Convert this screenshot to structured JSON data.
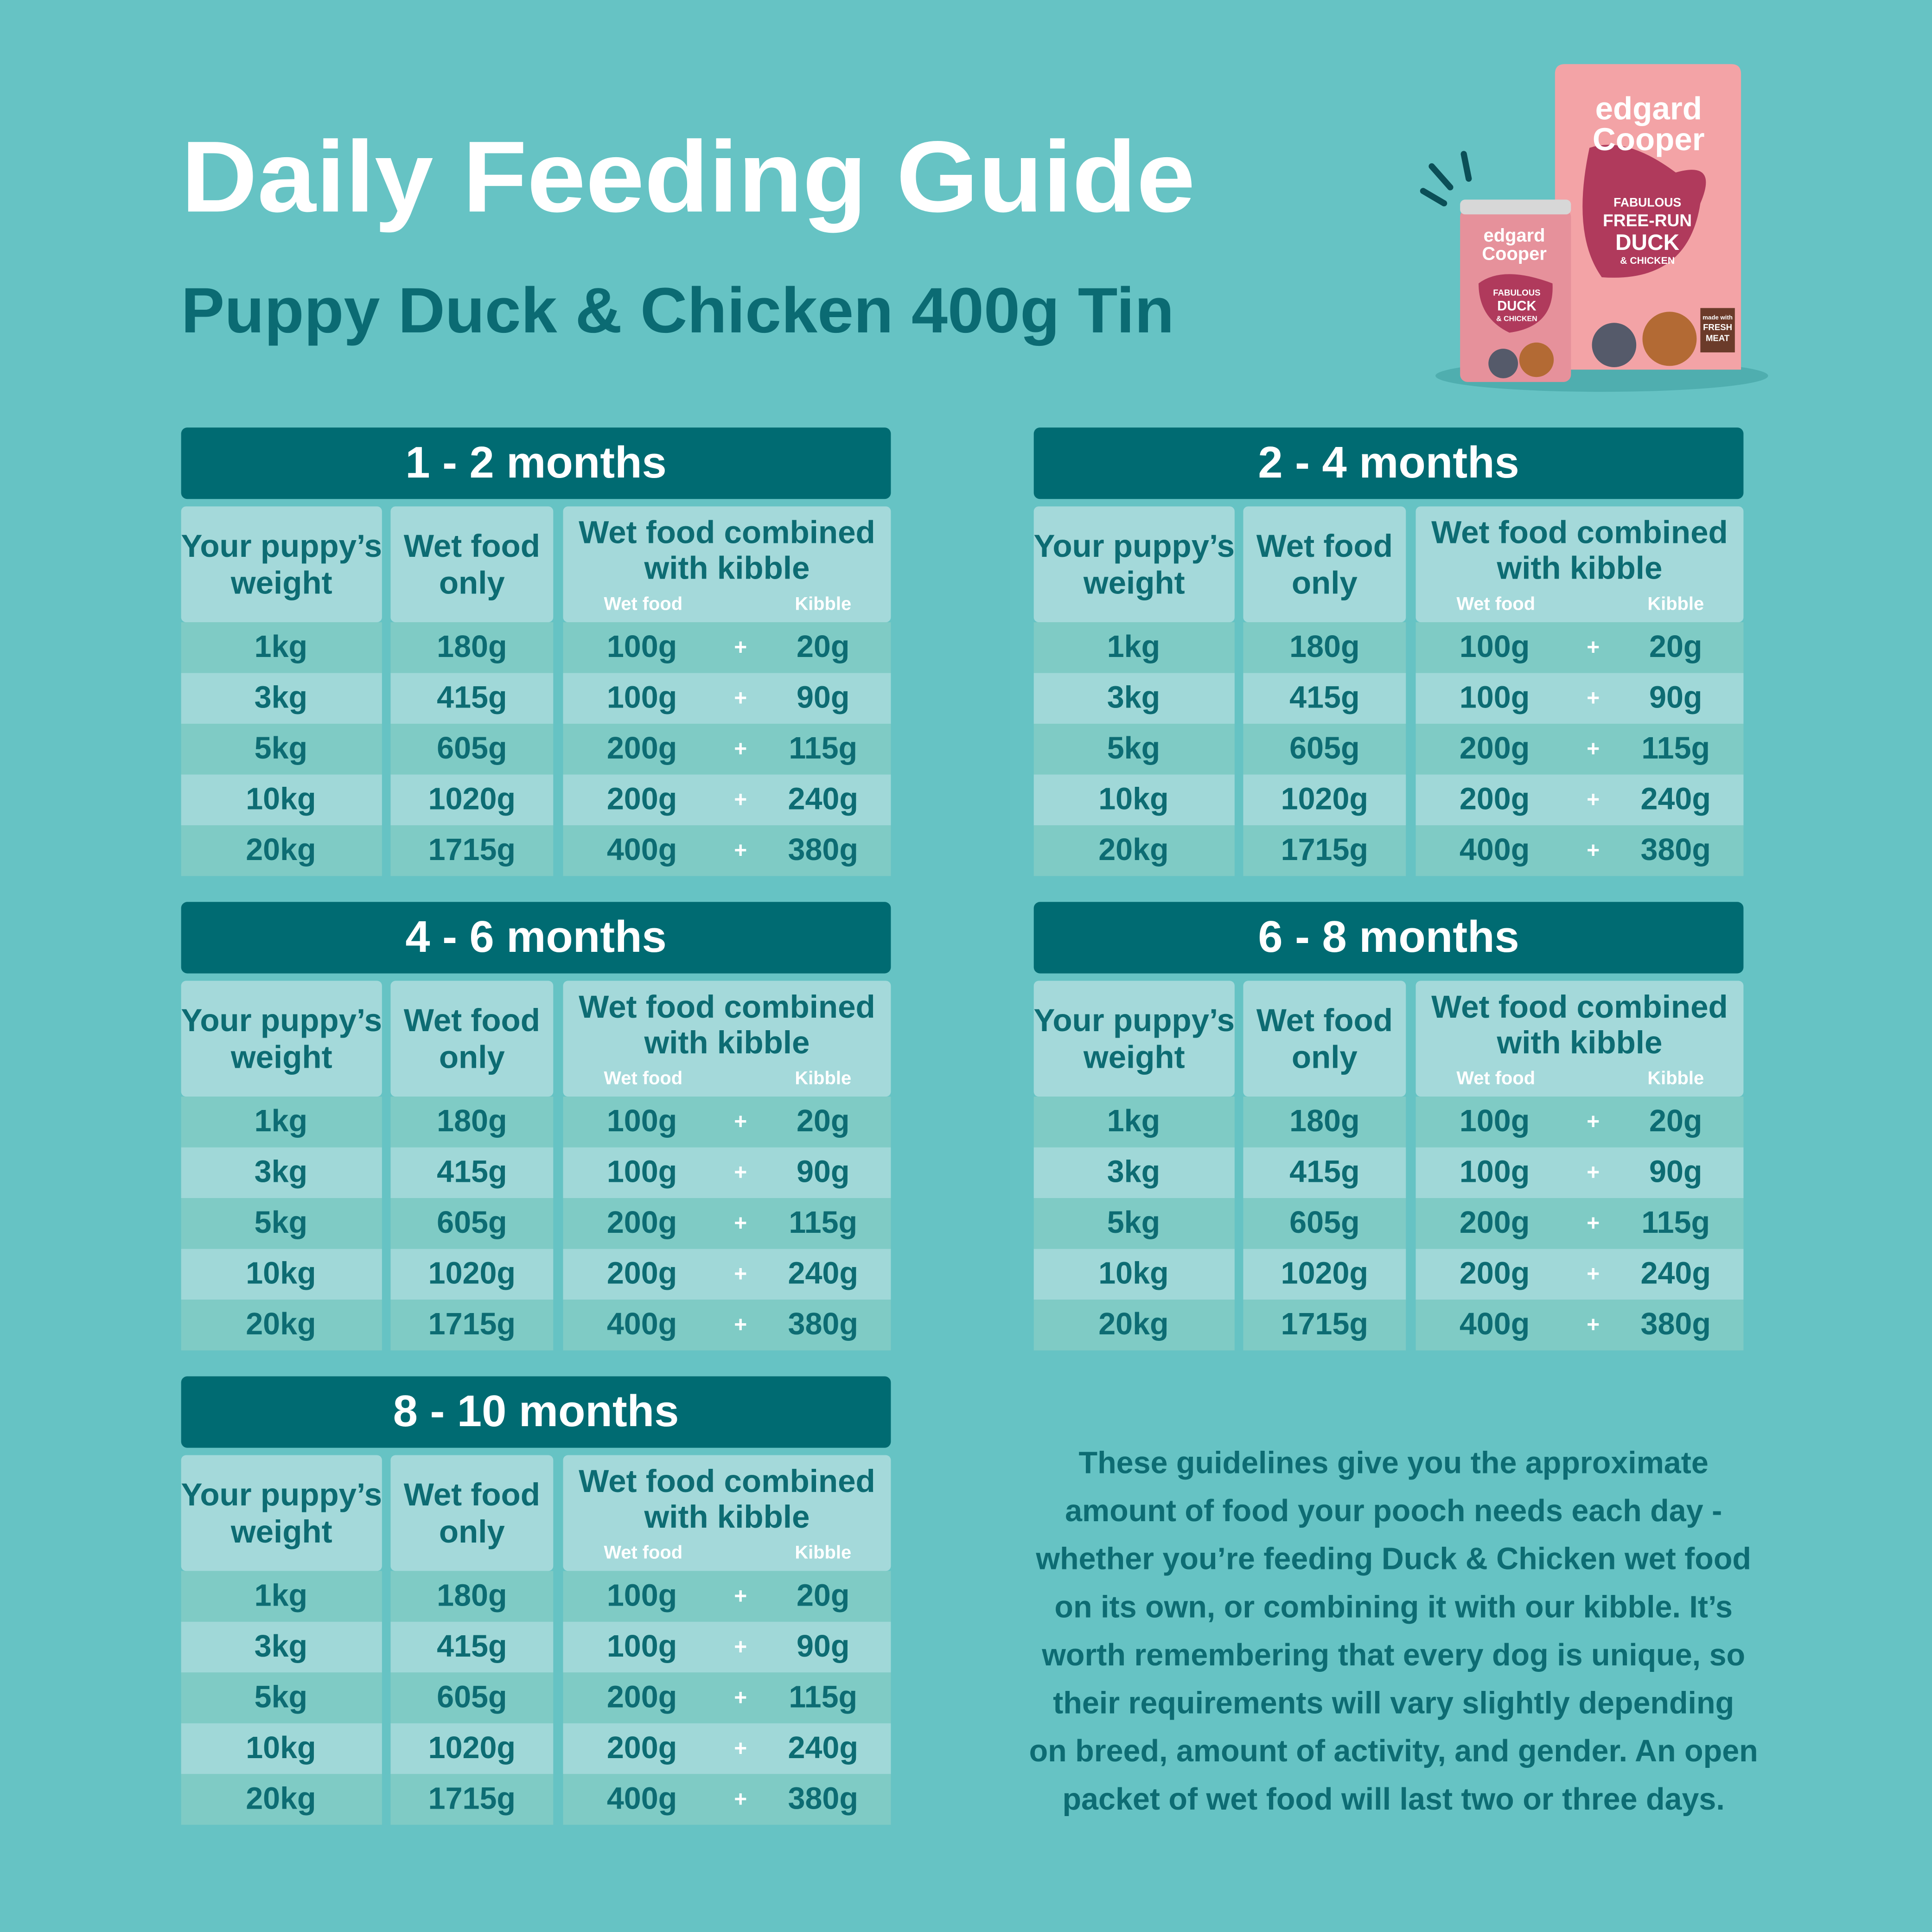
{
  "header": {
    "title": "Daily Feeding Guide",
    "subtitle": "Puppy Duck & Chicken 400g Tin"
  },
  "product": {
    "bag": {
      "brand": [
        "edgard",
        "Cooper"
      ],
      "lines": [
        "FABULOUS",
        "FREE-RUN",
        "DUCK",
        "& CHICKEN"
      ],
      "badge": [
        "made with",
        "FRESH",
        "MEAT"
      ]
    },
    "tin": {
      "brand": [
        "edgard",
        "Cooper"
      ],
      "lines": [
        "FABULOUS",
        "DUCK",
        "& CHICKEN"
      ]
    }
  },
  "tables": [
    {
      "title": "1 - 2 months",
      "headers": {
        "weight": [
          "Your puppy’s",
          "weight"
        ],
        "wet_only": [
          "Wet food",
          "only"
        ],
        "combined": [
          "Wet food combined",
          "with kibble"
        ],
        "wet_food": "Wet food",
        "kibble": "Kibble"
      },
      "separator": "+",
      "rows": [
        [
          "1kg",
          "180g",
          "100g",
          "20g"
        ],
        [
          "3kg",
          "415g",
          "100g",
          "90g"
        ],
        [
          "5kg",
          "605g",
          "200g",
          "115g"
        ],
        [
          "10kg",
          "1020g",
          "200g",
          "240g"
        ],
        [
          "20kg",
          "1715g",
          "400g",
          "380g"
        ]
      ]
    },
    {
      "title": "2 - 4 months",
      "headers": {
        "weight": [
          "Your puppy’s",
          "weight"
        ],
        "wet_only": [
          "Wet food",
          "only"
        ],
        "combined": [
          "Wet food combined",
          "with kibble"
        ],
        "wet_food": "Wet food",
        "kibble": "Kibble"
      },
      "separator": "+",
      "rows": [
        [
          "1kg",
          "180g",
          "100g",
          "20g"
        ],
        [
          "3kg",
          "415g",
          "100g",
          "90g"
        ],
        [
          "5kg",
          "605g",
          "200g",
          "115g"
        ],
        [
          "10kg",
          "1020g",
          "200g",
          "240g"
        ],
        [
          "20kg",
          "1715g",
          "400g",
          "380g"
        ]
      ]
    },
    {
      "title": "4 - 6 months",
      "headers": {
        "weight": [
          "Your puppy’s",
          "weight"
        ],
        "wet_only": [
          "Wet food",
          "only"
        ],
        "combined": [
          "Wet food combined",
          "with kibble"
        ],
        "wet_food": "Wet food",
        "kibble": "Kibble"
      },
      "separator": "+",
      "rows": [
        [
          "1kg",
          "180g",
          "100g",
          "20g"
        ],
        [
          "3kg",
          "415g",
          "100g",
          "90g"
        ],
        [
          "5kg",
          "605g",
          "200g",
          "115g"
        ],
        [
          "10kg",
          "1020g",
          "200g",
          "240g"
        ],
        [
          "20kg",
          "1715g",
          "400g",
          "380g"
        ]
      ]
    },
    {
      "title": "6 - 8 months",
      "headers": {
        "weight": [
          "Your puppy’s",
          "weight"
        ],
        "wet_only": [
          "Wet food",
          "only"
        ],
        "combined": [
          "Wet food combined",
          "with kibble"
        ],
        "wet_food": "Wet food",
        "kibble": "Kibble"
      },
      "separator": "+",
      "rows": [
        [
          "1kg",
          "180g",
          "100g",
          "20g"
        ],
        [
          "3kg",
          "415g",
          "100g",
          "90g"
        ],
        [
          "5kg",
          "605g",
          "200g",
          "115g"
        ],
        [
          "10kg",
          "1020g",
          "200g",
          "240g"
        ],
        [
          "20kg",
          "1715g",
          "400g",
          "380g"
        ]
      ]
    },
    {
      "title": "8 - 10 months",
      "headers": {
        "weight": [
          "Your puppy’s",
          "weight"
        ],
        "wet_only": [
          "Wet food",
          "only"
        ],
        "combined": [
          "Wet food combined",
          "with kibble"
        ],
        "wet_food": "Wet food",
        "kibble": "Kibble"
      },
      "separator": "+",
      "rows": [
        [
          "1kg",
          "180g",
          "100g",
          "20g"
        ],
        [
          "3kg",
          "415g",
          "100g",
          "90g"
        ],
        [
          "5kg",
          "605g",
          "200g",
          "115g"
        ],
        [
          "10kg",
          "1020g",
          "200g",
          "240g"
        ],
        [
          "20kg",
          "1715g",
          "400g",
          "380g"
        ]
      ]
    }
  ],
  "note": [
    "These guidelines give you the approximate",
    "amount of food your pooch needs each day -",
    "whether you’re feeding Duck & Chicken wet food",
    "on its own, or combining it with our kibble. It’s",
    "worth remembering that every dog is unique, so",
    "their requirements will vary slightly depending",
    "on breed, amount of activity, and gender. An open",
    "packet of wet food will last two or three days."
  ]
}
